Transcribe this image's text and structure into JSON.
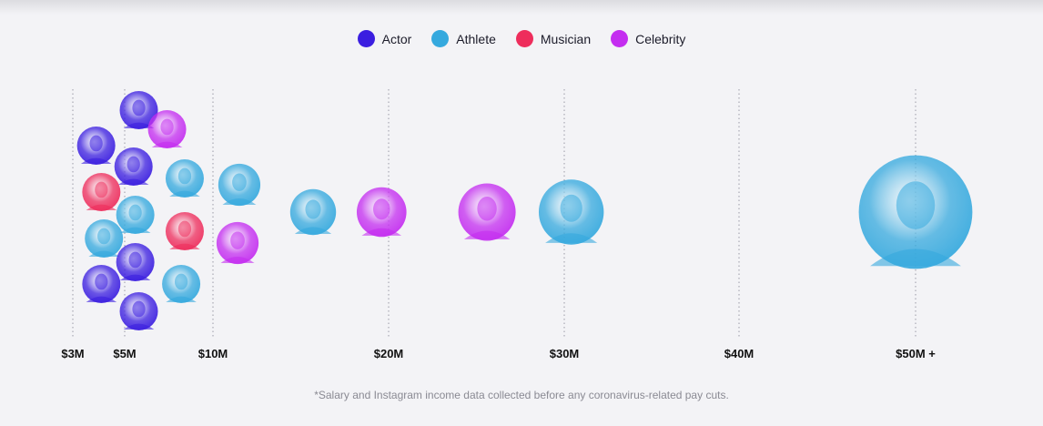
{
  "legend": [
    {
      "label": "Actor",
      "color": "#3b1ee0"
    },
    {
      "label": "Athlete",
      "color": "#35a9de"
    },
    {
      "label": "Musician",
      "color": "#ee2d5c"
    },
    {
      "label": "Celebrity",
      "color": "#c42df0"
    }
  ],
  "footnote": "*Salary and Instagram income data collected before any coronavirus-related pay cuts.",
  "chart_data": {
    "type": "scatter",
    "x_ticks": [
      {
        "value": 3,
        "label": "$3M"
      },
      {
        "value": 5,
        "label": "$5M"
      },
      {
        "value": 10,
        "label": "$10M"
      },
      {
        "value": 20,
        "label": "$20M"
      },
      {
        "value": 30,
        "label": "$30M"
      },
      {
        "value": 40,
        "label": "$40M"
      },
      {
        "value": 50,
        "label": "$50M +"
      }
    ],
    "points": [
      {
        "category": "Actor",
        "x": 3.9,
        "size": 1
      },
      {
        "category": "Musician",
        "x": 4.1,
        "size": 1
      },
      {
        "category": "Athlete",
        "x": 4.2,
        "size": 1
      },
      {
        "category": "Actor",
        "x": 4.1,
        "size": 1
      },
      {
        "category": "Actor",
        "x": 5.8,
        "size": 1
      },
      {
        "category": "Actor",
        "x": 5.5,
        "size": 1
      },
      {
        "category": "Athlete",
        "x": 5.6,
        "size": 1
      },
      {
        "category": "Actor",
        "x": 5.6,
        "size": 1
      },
      {
        "category": "Actor",
        "x": 5.8,
        "size": 1
      },
      {
        "category": "Celebrity",
        "x": 7.4,
        "size": 1
      },
      {
        "category": "Athlete",
        "x": 8.4,
        "size": 1
      },
      {
        "category": "Musician",
        "x": 8.4,
        "size": 1
      },
      {
        "category": "Athlete",
        "x": 8.2,
        "size": 1
      },
      {
        "category": "Athlete",
        "x": 11.5,
        "size": 1.1
      },
      {
        "category": "Celebrity",
        "x": 11.4,
        "size": 1.1
      },
      {
        "category": "Athlete",
        "x": 15.7,
        "size": 1.2
      },
      {
        "category": "Celebrity",
        "x": 19.6,
        "size": 1.3
      },
      {
        "category": "Celebrity",
        "x": 25.6,
        "size": 1.5
      },
      {
        "category": "Athlete",
        "x": 30.4,
        "size": 1.7
      },
      {
        "category": "Athlete",
        "x": 50.3,
        "size": 2.4
      }
    ]
  }
}
